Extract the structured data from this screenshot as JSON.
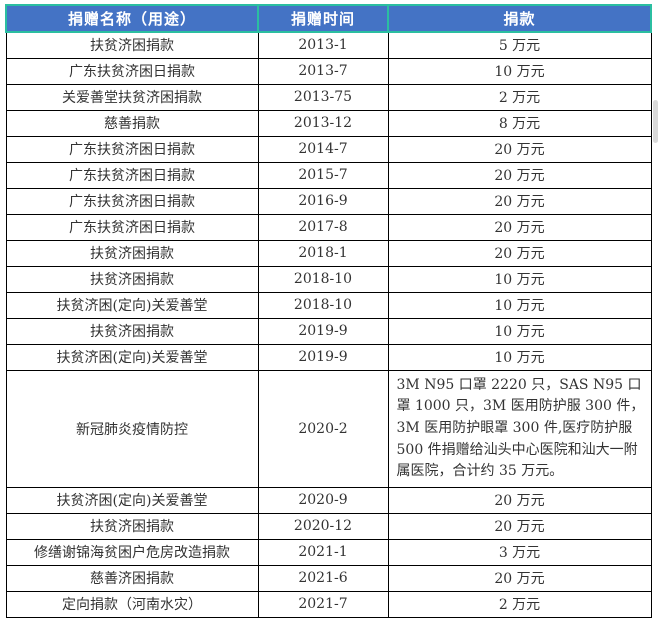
{
  "theme": {
    "headerBg": "#4473c5",
    "headerText": "#ffffff",
    "accent": "#2bbea1",
    "cellBorder": "#000000",
    "bodyText": "#333333"
  },
  "table": {
    "columns": [
      {
        "label": "捐赠名称（用途）"
      },
      {
        "label": "捐赠时间"
      },
      {
        "label": "捐款"
      }
    ],
    "rows": [
      {
        "name": "扶贫济困捐款",
        "time": "2013-1",
        "amount": "5 万元"
      },
      {
        "name": "广东扶贫济困日捐款",
        "time": "2013-7",
        "amount": "10 万元"
      },
      {
        "name": "关爱善堂扶贫济困捐款",
        "time": "2013-75",
        "amount": "2 万元"
      },
      {
        "name": "慈善捐款",
        "time": "2013-12",
        "amount": "8 万元"
      },
      {
        "name": "广东扶贫济困日捐款",
        "time": "2014-7",
        "amount": "20 万元"
      },
      {
        "name": "广东扶贫济困日捐款",
        "time": "2015-7",
        "amount": "20 万元"
      },
      {
        "name": "广东扶贫济困日捐款",
        "time": "2016-9",
        "amount": "20 万元"
      },
      {
        "name": "广东扶贫济困日捐款",
        "time": "2017-8",
        "amount": "20 万元"
      },
      {
        "name": "扶贫济困捐款",
        "time": "2018-1",
        "amount": "20 万元"
      },
      {
        "name": "扶贫济困捐款",
        "time": "2018-10",
        "amount": "10 万元"
      },
      {
        "name": "扶贫济困(定向)关爱善堂",
        "time": "2018-10",
        "amount": "10 万元"
      },
      {
        "name": "扶贫济困捐款",
        "time": "2019-9",
        "amount": "10 万元"
      },
      {
        "name": "扶贫济困(定向)关爱善堂",
        "time": "2019-9",
        "amount": "10 万元"
      },
      {
        "name": "新冠肺炎疫情防控",
        "time": "2020-2",
        "amount": "3M N95 口罩 2220 只，SAS N95 口罩 1000 只，3M 医用防护服 300 件，3M 医用防护眼罩 300 件,医疗防护服 500 件捐赠给汕头中心医院和汕大一附属医院，合计约 35 万元。"
      },
      {
        "name": "扶贫济困(定向)关爱善堂",
        "time": "2020-9",
        "amount": "20 万元"
      },
      {
        "name": "扶贫济困捐款",
        "time": "2020-12",
        "amount": "20 万元"
      },
      {
        "name": "修缮谢锦海贫困户危房改造捐款",
        "time": "2021-1",
        "amount": "3 万元"
      },
      {
        "name": "慈善济困捐款",
        "time": "2021-6",
        "amount": "20 万元"
      },
      {
        "name": "定向捐款（河南水灾）",
        "time": "2021-7",
        "amount": "2 万元"
      }
    ]
  }
}
